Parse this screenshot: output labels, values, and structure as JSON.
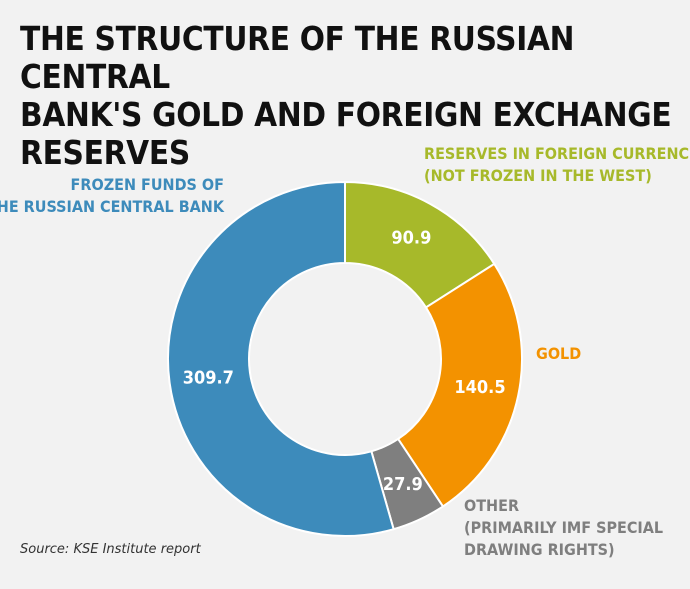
{
  "title": {
    "line1": "THE STRUCTURE OF THE RUSSIAN CENTRAL",
    "line2": "BANK'S GOLD AND FOREIGN EXCHANGE RESERVES"
  },
  "source": "Source: KSE Institute report",
  "chart_data": {
    "type": "pie",
    "variant": "donut",
    "start": "top",
    "direction": "clockwise",
    "slices": [
      {
        "label_lines": [
          "RESERVES IN FOREIGN CURRENCIES",
          "(NOT FROZEN IN THE WEST)"
        ],
        "value": 90.9,
        "value_label": "90.9",
        "color": "#a7b92a"
      },
      {
        "label_lines": [
          "GOLD"
        ],
        "value": 140.5,
        "value_label": "140.5",
        "color": "#f39200"
      },
      {
        "label_lines": [
          "OTHER",
          "(PRIMARILY IMF SPECIAL",
          "DRAWING RIGHTS)"
        ],
        "value": 27.9,
        "value_label": "27.9",
        "color": "#7f7f7f"
      },
      {
        "label_lines": [
          "FROZEN FUNDS OF",
          "THE RUSSIAN CENTRAL BANK"
        ],
        "value": 309.7,
        "value_label": "309.7",
        "color": "#3d8bbb"
      }
    ]
  }
}
